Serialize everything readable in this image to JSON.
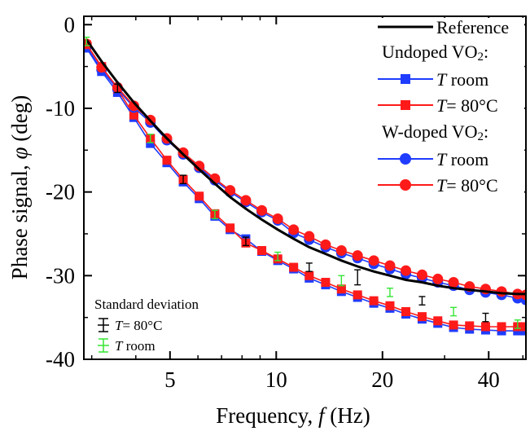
{
  "colors": {
    "reference": "#000000",
    "undoped_room": "#1f3cff",
    "undoped_80": "#ff1a1a",
    "wdoped_room": "#1f3cff",
    "wdoped_80": "#ff1a1a",
    "std_80": "#000000",
    "std_room": "#33e633",
    "marker_fill_blue": "#1f3cff",
    "marker_fill_red": "#ff1a1a"
  },
  "chart_data": {
    "type": "line",
    "xlabel": "Frequency, f (Hz)",
    "ylabel": "Phase signal, φ (deg)",
    "xscale": "log",
    "xlim": [
      2.85,
      51
    ],
    "ylim": [
      -40,
      1
    ],
    "xticks": [
      5,
      10,
      20,
      40
    ],
    "xtick_labels": [
      "5",
      "10",
      "20",
      "40"
    ],
    "yticks": [
      0,
      -10,
      -20,
      -30,
      -40
    ],
    "ytick_labels": [
      "0",
      "-10",
      "-20",
      "-30",
      "-40"
    ],
    "grid": false,
    "legend_placement": "top-right",
    "legend": {
      "reference": "Reference",
      "group1": "Undoped VO2:",
      "group2": "W-doped VO2:",
      "t_room_italic": "T",
      "t_room_rest": " room",
      "t_80_italic": "T",
      "t_80_rest": "= 80°C"
    },
    "std_legend": {
      "title": "Standard deviation",
      "t80_italic": "T",
      "t80_rest": "= 80°C",
      "troom_italic": "T",
      "troom_rest": " room"
    },
    "x": [
      2.9,
      3.2,
      3.55,
      3.95,
      4.4,
      4.9,
      5.45,
      6.05,
      6.7,
      7.4,
      8.2,
      9.1,
      10.1,
      11.2,
      12.4,
      13.8,
      15.3,
      17,
      18.9,
      21,
      23.3,
      25.9,
      28.7,
      31.8,
      35.3,
      39.2,
      43.5,
      48.3,
      51
    ],
    "series": [
      {
        "name": "Reference",
        "style": "line",
        "values": [
          -1.8,
          -4.4,
          -6.9,
          -9.3,
          -11.5,
          -13.6,
          -15.5,
          -17.3,
          -19.0,
          -20.6,
          -22.0,
          -23.3,
          -24.5,
          -25.6,
          -26.6,
          -27.4,
          -28.2,
          -28.9,
          -29.5,
          -30.0,
          -30.5,
          -30.8,
          -31.2,
          -31.5,
          -31.7,
          -31.9,
          -32.1,
          -32.2,
          -32.2
        ]
      },
      {
        "name": "Undoped VO2: T room",
        "style": "square",
        "values": [
          -2.8,
          -5.6,
          -8.1,
          -11.1,
          -14.2,
          -16.5,
          -18.8,
          -20.8,
          -22.9,
          -24.5,
          -25.6,
          -27.1,
          -28.2,
          -29.2,
          -30.3,
          -31.1,
          -31.9,
          -32.6,
          -33.3,
          -33.9,
          -34.6,
          -35.2,
          -35.7,
          -36.2,
          -36.4,
          -36.5,
          -36.6,
          -36.6,
          -36.6
        ]
      },
      {
        "name": "Undoped VO2: T= 80°C",
        "style": "square",
        "values": [
          -2.4,
          -5.0,
          -7.7,
          -10.8,
          -13.6,
          -16.2,
          -18.5,
          -20.5,
          -22.6,
          -24.3,
          -26.1,
          -27.0,
          -28.0,
          -29.0,
          -30.0,
          -30.8,
          -31.6,
          -32.3,
          -33.0,
          -33.6,
          -34.3,
          -34.9,
          -35.4,
          -35.9,
          -36.0,
          -36.1,
          -36.1,
          -36.1,
          -36.1
        ]
      },
      {
        "name": "W-doped VO2: T room",
        "style": "circle",
        "values": [
          -2.6,
          -5.4,
          -7.7,
          -9.9,
          -11.7,
          -13.8,
          -15.5,
          -17.1,
          -18.6,
          -20.0,
          -21.2,
          -22.4,
          -23.4,
          -24.9,
          -25.7,
          -26.6,
          -27.3,
          -27.9,
          -28.6,
          -29.2,
          -29.8,
          -30.3,
          -30.8,
          -31.2,
          -31.7,
          -32.0,
          -32.3,
          -32.7,
          -32.9
        ]
      },
      {
        "name": "W-doped VO2: T= 80°C",
        "style": "circle",
        "values": [
          -2.3,
          -5.1,
          -7.5,
          -9.7,
          -11.4,
          -13.6,
          -15.3,
          -16.9,
          -18.4,
          -19.8,
          -21.0,
          -22.2,
          -23.2,
          -24.5,
          -25.3,
          -26.3,
          -27.0,
          -27.6,
          -28.2,
          -28.8,
          -29.4,
          -29.9,
          -30.4,
          -30.8,
          -31.3,
          -31.6,
          -31.9,
          -32.2,
          -32.3
        ]
      }
    ],
    "std_dev_points": [
      {
        "x": 2.9,
        "y": -2.0,
        "err": 0.5
      },
      {
        "x": 3.55,
        "y": -7.6,
        "err": 0.5
      },
      {
        "x": 4.4,
        "y": -13.6,
        "err": 0.5
      },
      {
        "x": 5.45,
        "y": -18.5,
        "err": 0.5
      },
      {
        "x": 6.7,
        "y": -22.7,
        "err": 0.5
      },
      {
        "x": 8.2,
        "y": -25.9,
        "err": 0.5
      },
      {
        "x": 10.1,
        "y": -27.7,
        "err": 0.5
      },
      {
        "x": 12.4,
        "y": -29.0,
        "err": 0.5
      },
      {
        "x": 15.3,
        "y": -30.6,
        "err": 0.6
      },
      {
        "x": 17.0,
        "y": -30.2,
        "err": 0.9
      },
      {
        "x": 21.0,
        "y": -32.0,
        "err": 0.5
      },
      {
        "x": 25.9,
        "y": -33.0,
        "err": 0.5
      },
      {
        "x": 31.8,
        "y": -34.3,
        "err": 0.5
      },
      {
        "x": 39.2,
        "y": -35.0,
        "err": 0.5
      },
      {
        "x": 48.3,
        "y": -35.8,
        "err": 0.5
      }
    ]
  }
}
